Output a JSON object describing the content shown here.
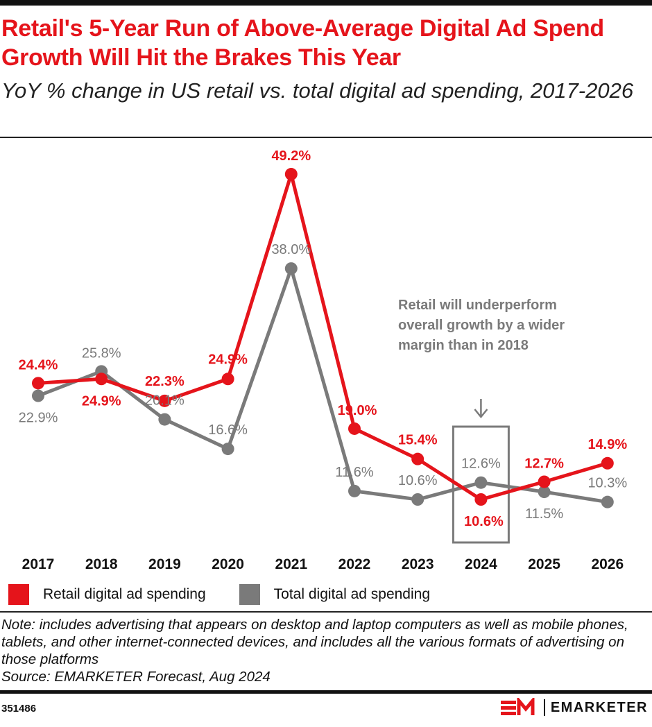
{
  "title": "Retail's 5-Year Run of Above-Average Digital Ad Spend Growth Will Hit the Brakes This Year",
  "subtitle": "YoY % change in US retail vs. total digital ad spending, 2017-2026",
  "chart_data": {
    "type": "line",
    "title": "Retail's 5-Year Run of Above-Average Digital Ad Spend Growth Will Hit the Brakes This Year",
    "subtitle": "YoY % change in US retail vs. total digital ad spending, 2017-2026",
    "categories": [
      "2017",
      "2018",
      "2019",
      "2020",
      "2021",
      "2022",
      "2023",
      "2024",
      "2025",
      "2026"
    ],
    "series": [
      {
        "name": "Retail digital ad spending",
        "color": "#e5141b",
        "values": [
          24.4,
          24.9,
          22.3,
          24.9,
          49.2,
          19.0,
          15.4,
          10.6,
          12.7,
          14.9
        ],
        "labels": [
          "24.4%",
          "24.9%",
          "22.3%",
          "24.9%",
          "49.2%",
          "19.0%",
          "15.4%",
          "10.6%",
          "12.7%",
          "14.9%"
        ]
      },
      {
        "name": "Total digital ad spending",
        "color": "#7a7a7a",
        "values": [
          22.9,
          25.8,
          20.1,
          16.6,
          38.0,
          11.6,
          10.6,
          12.6,
          11.5,
          10.3
        ],
        "labels": [
          "22.9%",
          "25.8%",
          "20.1%",
          "16.6%",
          "38.0%",
          "11.6%",
          "10.6%",
          "12.6%",
          "11.5%",
          "10.3%"
        ]
      }
    ],
    "annotation": {
      "text": [
        "Retail will underperform",
        "overall growth by a wider",
        "margin than in 2018"
      ],
      "target": "2024"
    },
    "grid": false,
    "legend": "bottom-left"
  },
  "legend": {
    "retail": "Retail digital ad spending",
    "total": "Total digital ad spending"
  },
  "note": "Note: includes advertising that appears on desktop and laptop computers as well as mobile phones, tablets, and other internet-connected devices, and includes all the various formats of advertising on those platforms",
  "source": "Source: EMARKETER Forecast, Aug 2024",
  "footer": {
    "id": "351486",
    "logo": "EMARKETER"
  }
}
